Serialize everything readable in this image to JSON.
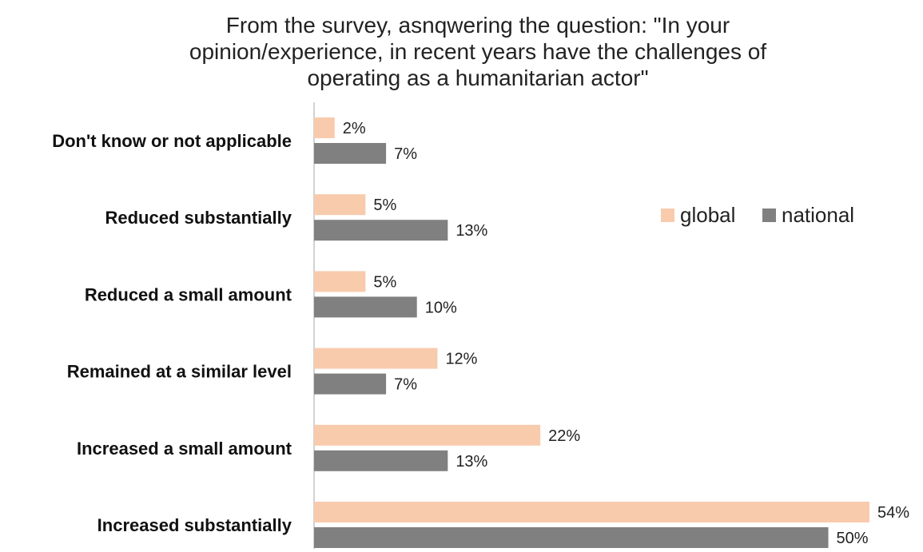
{
  "chart_data": {
    "type": "bar",
    "orientation": "horizontal",
    "title_lines": [
      "From the survey, asnqwering the question: \"In your",
      "opinion/experience, in recent years have the challenges of",
      "operating as a humanitarian actor\""
    ],
    "categories": [
      "Don't know or not applicable",
      "Reduced substantially",
      "Reduced a small amount",
      "Remained at a similar level",
      "Increased a small amount",
      "Increased substantially"
    ],
    "series": [
      {
        "name": "global",
        "color": "#F8CBAD",
        "values": [
          2,
          5,
          5,
          12,
          22,
          54
        ],
        "labels": [
          "2%",
          "5%",
          "5%",
          "12%",
          "22%",
          "54%"
        ]
      },
      {
        "name": "national",
        "color": "#808080",
        "values": [
          7,
          13,
          10,
          7,
          13,
          50
        ],
        "labels": [
          "7%",
          "13%",
          "10%",
          "7%",
          "13%",
          "50%"
        ]
      }
    ],
    "value_unit": "%",
    "xlim": [
      0,
      54
    ],
    "axis_line_color": "#A6A6A6",
    "grid": false,
    "legend_position": "right"
  }
}
